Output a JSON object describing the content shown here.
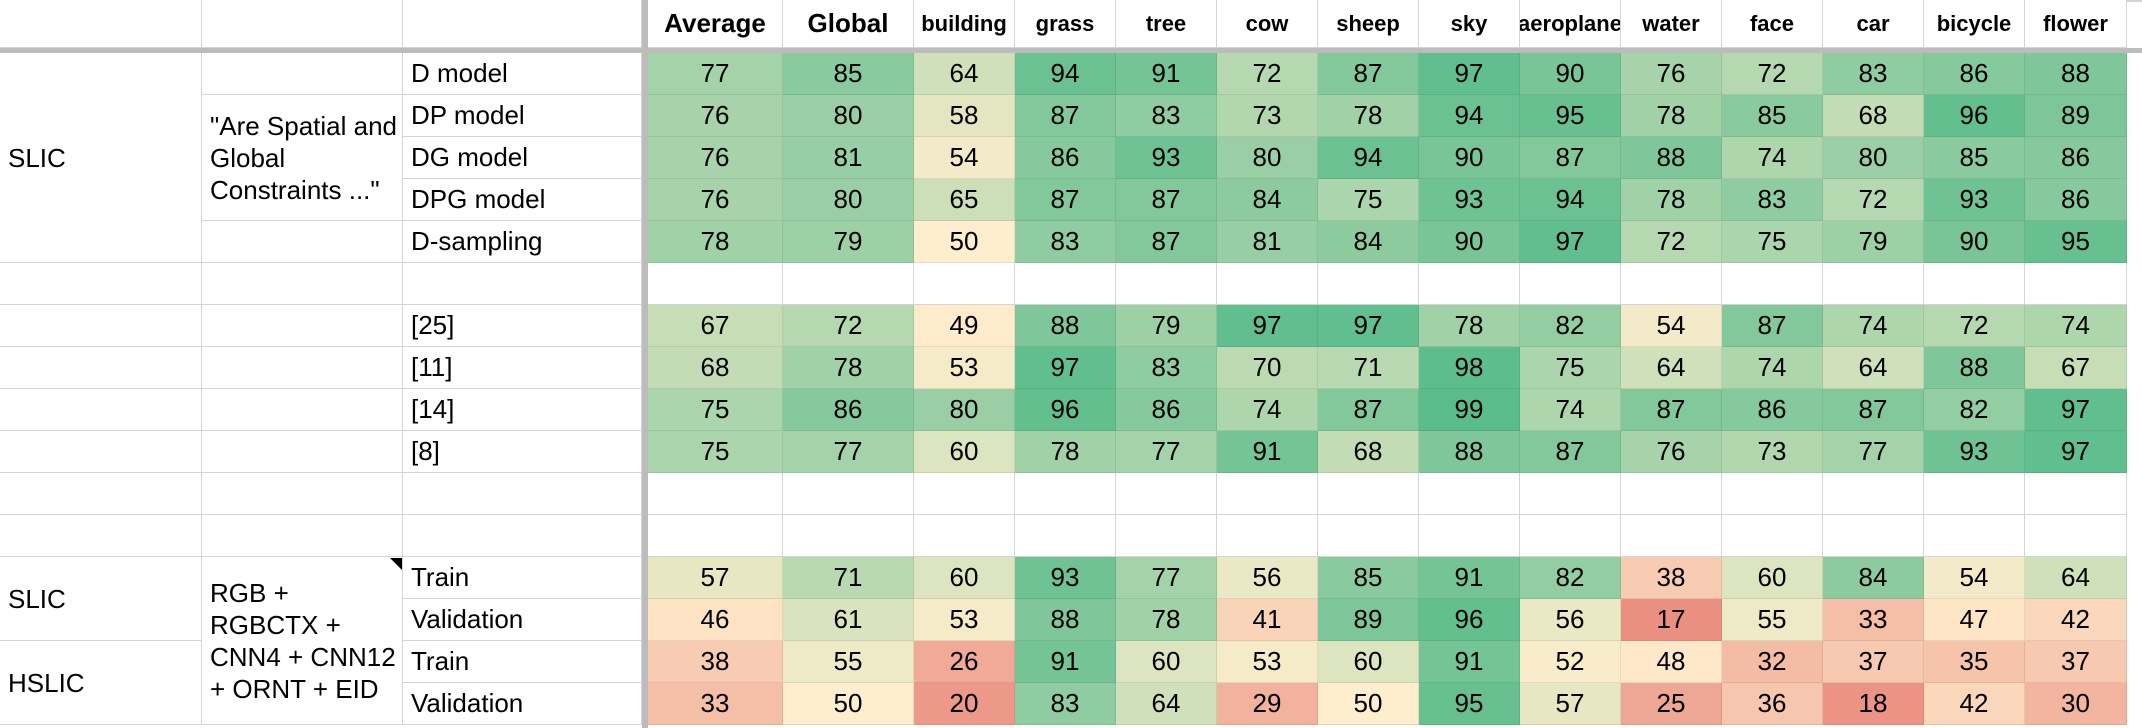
{
  "columns": [
    "Average",
    "Global",
    "building",
    "grass",
    "tree",
    "cow",
    "sheep",
    "sky",
    "aeroplane",
    "water",
    "face",
    "car",
    "bicycle",
    "flower"
  ],
  "groups": [
    {
      "row": 1,
      "span": 5,
      "col": "A",
      "text": "SLIC"
    },
    {
      "row": 2,
      "span": 3,
      "col": "B",
      "text": "\"Are Spatial and\nGlobal\nConstraints ...\""
    },
    {
      "row": 13,
      "span": 2,
      "col": "A",
      "text": "SLIC"
    },
    {
      "row": 13,
      "span": 4,
      "col": "B",
      "text": "RGB +\nRGBCTX +\nCNN4 + CNN12\n+ ORNT + EID"
    },
    {
      "row": 15,
      "span": 2,
      "col": "A",
      "text": "HSLIC"
    }
  ],
  "rows": [
    {
      "label": "D model",
      "values": [
        77,
        85,
        64,
        94,
        91,
        72,
        87,
        97,
        90,
        76,
        72,
        83,
        86,
        88
      ]
    },
    {
      "label": "DP model",
      "values": [
        76,
        80,
        58,
        87,
        83,
        73,
        78,
        94,
        95,
        78,
        85,
        68,
        96,
        89
      ]
    },
    {
      "label": "DG model",
      "values": [
        76,
        81,
        54,
        86,
        93,
        80,
        94,
        90,
        87,
        88,
        74,
        80,
        85,
        86
      ]
    },
    {
      "label": "DPG model",
      "values": [
        76,
        80,
        65,
        87,
        87,
        84,
        75,
        93,
        94,
        78,
        83,
        72,
        93,
        86
      ]
    },
    {
      "label": "D-sampling",
      "values": [
        78,
        79,
        50,
        83,
        87,
        81,
        84,
        90,
        97,
        72,
        75,
        79,
        90,
        95
      ]
    },
    {
      "label": "",
      "values": []
    },
    {
      "label": "[25]",
      "values": [
        67,
        72,
        49,
        88,
        79,
        97,
        97,
        78,
        82,
        54,
        87,
        74,
        72,
        74
      ]
    },
    {
      "label": "[11]",
      "values": [
        68,
        78,
        53,
        97,
        83,
        70,
        71,
        98,
        75,
        64,
        74,
        64,
        88,
        67
      ]
    },
    {
      "label": "[14]",
      "values": [
        75,
        86,
        80,
        96,
        86,
        74,
        87,
        99,
        74,
        87,
        86,
        87,
        82,
        97
      ]
    },
    {
      "label": "[8]",
      "values": [
        75,
        77,
        60,
        78,
        77,
        91,
        68,
        88,
        87,
        76,
        73,
        77,
        93,
        97
      ]
    },
    {
      "label": "",
      "values": []
    },
    {
      "label": "",
      "values": []
    },
    {
      "label": "Train",
      "values": [
        57,
        71,
        60,
        93,
        77,
        56,
        85,
        91,
        82,
        38,
        60,
        84,
        54,
        64
      ]
    },
    {
      "label": "Validation",
      "values": [
        46,
        61,
        53,
        88,
        78,
        41,
        89,
        96,
        56,
        17,
        55,
        33,
        47,
        42
      ]
    },
    {
      "label": "Train",
      "values": [
        38,
        55,
        26,
        91,
        60,
        53,
        60,
        91,
        52,
        48,
        32,
        37,
        35,
        37
      ]
    },
    {
      "label": "Validation",
      "values": [
        33,
        50,
        20,
        83,
        64,
        29,
        50,
        95,
        57,
        25,
        36,
        18,
        42,
        30
      ]
    }
  ],
  "colors": {
    "low": "#e67c73",
    "mid": "#ffeecd",
    "high": "#57bb8a",
    "grid": "#d4d4d4",
    "separator": "#bcbcbc"
  }
}
